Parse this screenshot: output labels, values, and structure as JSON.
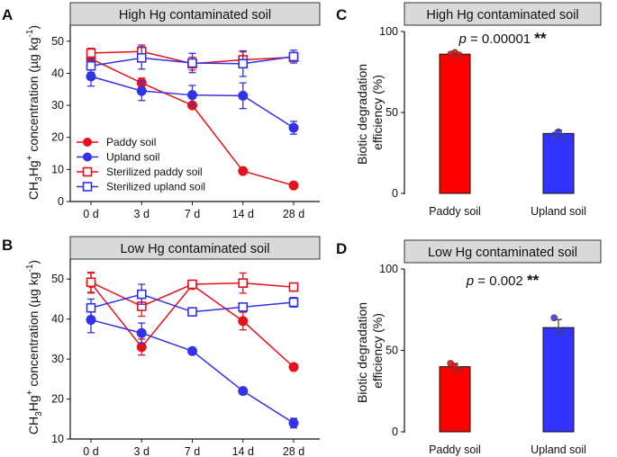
{
  "chart_data": [
    {
      "panel": "A",
      "type": "line",
      "title": "High Hg contaminated soil",
      "ylabel_parts": [
        "CH",
        "3",
        "Hg",
        "+",
        " concentration (µg kg",
        "-1",
        ")"
      ],
      "categories": [
        "0 d",
        "3 d",
        "7 d",
        "14 d",
        "28 d"
      ],
      "ylim": [
        0,
        55
      ],
      "yticks": [
        "0",
        "10",
        "20",
        "30",
        "40",
        "50"
      ],
      "legend_position": "lower-left",
      "series": [
        {
          "name": "Paddy soil",
          "color": "#e8111b",
          "marker": "filled",
          "values": [
            44.5,
            37,
            30,
            9.5,
            5
          ],
          "errors": [
            1.5,
            1.5,
            0.8,
            0.8,
            0.8
          ]
        },
        {
          "name": "Upland soil",
          "color": "#3232e6",
          "marker": "filled",
          "values": [
            39,
            34.5,
            33.2,
            33,
            23
          ],
          "errors": [
            3,
            3,
            3,
            4,
            2
          ]
        },
        {
          "name": "Sterilized paddy soil",
          "color": "#e8111b",
          "marker": "open",
          "values": [
            46.3,
            46.8,
            43,
            44.2,
            45
          ],
          "errors": [
            1.5,
            2,
            2,
            2.5,
            1.2
          ]
        },
        {
          "name": "Sterilized upland soil",
          "color": "#3232e6",
          "marker": "open",
          "values": [
            42.3,
            44.8,
            43.2,
            43,
            45.2
          ],
          "errors": [
            2,
            3.5,
            3,
            4,
            2
          ]
        }
      ]
    },
    {
      "panel": "B",
      "type": "line",
      "title": "Low Hg contaminated soil",
      "ylabel_parts": [
        "CH",
        "3",
        "Hg",
        "+",
        " concentration (µg kg",
        "-1",
        ")"
      ],
      "categories": [
        "0 d",
        "3 d",
        "7 d",
        "14 d",
        "28 d"
      ],
      "ylim": [
        10,
        55
      ],
      "yticks": [
        "10",
        "20",
        "30",
        "40",
        "50"
      ],
      "series": [
        {
          "name": "Paddy soil",
          "color": "#e8111b",
          "marker": "filled",
          "values": [
            49,
            33,
            48.5,
            39.5,
            28
          ],
          "errors": [
            2.5,
            2,
            0.6,
            2.2,
            0.8
          ]
        },
        {
          "name": "Upland soil",
          "color": "#3232e6",
          "marker": "filled",
          "values": [
            39.8,
            36.5,
            32,
            22,
            14
          ],
          "errors": [
            3.2,
            2.5,
            0.8,
            0.8,
            1.2
          ]
        },
        {
          "name": "Sterilized paddy soil",
          "color": "#e8111b",
          "marker": "open",
          "values": [
            49.2,
            43.2,
            48.7,
            49,
            48
          ],
          "errors": [
            2.5,
            2.5,
            0.6,
            2.5,
            0.8
          ]
        },
        {
          "name": "Sterilized upland soil",
          "color": "#3232e6",
          "marker": "open",
          "values": [
            42.8,
            46.2,
            41.8,
            43,
            44.2
          ],
          "errors": [
            2.2,
            2.5,
            0.8,
            0.6,
            1.2
          ]
        }
      ]
    },
    {
      "panel": "C",
      "type": "bar",
      "title": "High Hg contaminated soil",
      "ylabel_line1": "Biotic degradation",
      "ylabel_line2": "efficiency (%)",
      "categories": [
        "Paddy soil",
        "Upland soil"
      ],
      "colors": [
        "#ff0000",
        "#3333ff"
      ],
      "values": [
        86,
        37
      ],
      "errors": [
        1,
        2
      ],
      "points": [
        [
          86,
          87,
          85.5
        ],
        [
          36,
          38,
          35
        ]
      ],
      "ylim": [
        0,
        100
      ],
      "yticks": [
        "0",
        "50",
        "100"
      ],
      "pvalue_label": "p",
      "pvalue_text": " = 0.00001 ",
      "significance": "**"
    },
    {
      "panel": "D",
      "type": "bar",
      "title": "Low Hg contaminated soil",
      "ylabel_line1": "Biotic degradation",
      "ylabel_line2": "efficiency (%)",
      "categories": [
        "Paddy soil",
        "Upland soil"
      ],
      "colors": [
        "#ff0000",
        "#3333ff"
      ],
      "values": [
        40,
        64
      ],
      "errors": [
        2,
        5
      ],
      "points": [
        [
          42,
          40,
          38
        ],
        [
          70,
          62,
          61
        ]
      ],
      "ylim": [
        0,
        100
      ],
      "yticks": [
        "0",
        "50",
        "100"
      ],
      "pvalue_label": "p",
      "pvalue_text": " = 0.002 ",
      "significance": "**"
    }
  ]
}
